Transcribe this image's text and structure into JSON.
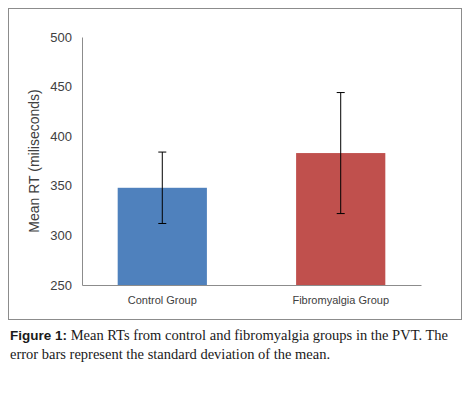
{
  "chart_data": {
    "type": "bar",
    "y_label": "Mean RT (miliseconds)",
    "categories": [
      "Control Group",
      "Fibromyalgia Group"
    ],
    "values": [
      348,
      383
    ],
    "errors": [
      36,
      61
    ],
    "colors": [
      "#4f81bd",
      "#c0504d"
    ],
    "ylim": [
      250,
      500
    ],
    "yticks": [
      250,
      300,
      350,
      400,
      450,
      500
    ],
    "grid": false,
    "caption_label": "Figure 1:",
    "caption": "Mean RTs from control and fibromyalgia groups in the PVT. The error bars represent the standard deviation of the mean."
  }
}
